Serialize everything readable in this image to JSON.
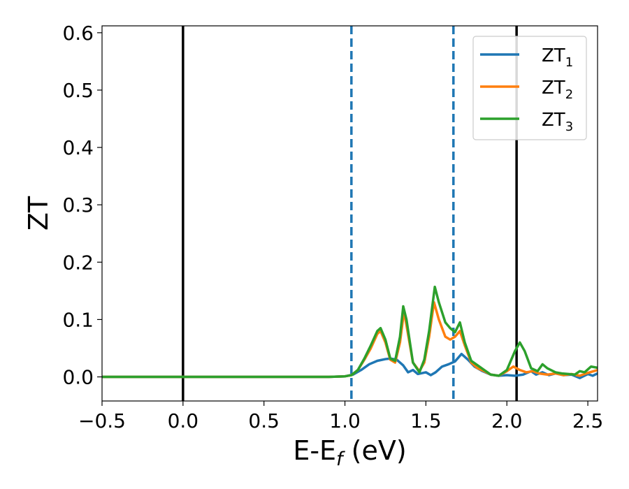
{
  "chart_data": {
    "type": "line",
    "xlabel": "E-E",
    "xlabel_sub": "f",
    "xlabel_suffix": " (eV)",
    "ylabel": "ZT",
    "xlim": [
      -0.5,
      2.56
    ],
    "ylim": [
      -0.042,
      0.612
    ],
    "xticks": [
      -0.5,
      0.0,
      0.5,
      1.0,
      1.5,
      2.0,
      2.5
    ],
    "xtick_labels": [
      "−0.5",
      "0.0",
      "0.5",
      "1.0",
      "1.5",
      "2.0",
      "2.5"
    ],
    "yticks": [
      0.0,
      0.1,
      0.2,
      0.3,
      0.4,
      0.5,
      0.6
    ],
    "ytick_labels": [
      "0.0",
      "0.1",
      "0.2",
      "0.3",
      "0.4",
      "0.5",
      "0.6"
    ],
    "grid": false,
    "legend_position": "top-right",
    "vlines": [
      {
        "x": 0.0,
        "color": "#000000",
        "style": "solid"
      },
      {
        "x": 2.06,
        "color": "#000000",
        "style": "solid"
      },
      {
        "x": 1.04,
        "color": "#1f77b4",
        "style": "dashed"
      },
      {
        "x": 1.67,
        "color": "#1f77b4",
        "style": "dashed"
      }
    ],
    "series": [
      {
        "name": "ZT",
        "sub": "1",
        "color": "#1f77b4",
        "points": [
          [
            -0.5,
            0
          ],
          [
            0.9,
            0
          ],
          [
            1.0,
            0.001
          ],
          [
            1.05,
            0.004
          ],
          [
            1.1,
            0.012
          ],
          [
            1.15,
            0.022
          ],
          [
            1.2,
            0.028
          ],
          [
            1.25,
            0.031
          ],
          [
            1.28,
            0.032
          ],
          [
            1.32,
            0.03
          ],
          [
            1.36,
            0.02
          ],
          [
            1.39,
            0.008
          ],
          [
            1.42,
            0.012
          ],
          [
            1.45,
            0.005
          ],
          [
            1.5,
            0.008
          ],
          [
            1.53,
            0.003
          ],
          [
            1.56,
            0.008
          ],
          [
            1.6,
            0.018
          ],
          [
            1.64,
            0.022
          ],
          [
            1.68,
            0.027
          ],
          [
            1.72,
            0.04
          ],
          [
            1.76,
            0.03
          ],
          [
            1.8,
            0.018
          ],
          [
            1.85,
            0.01
          ],
          [
            1.9,
            0.004
          ],
          [
            1.95,
            0.002
          ],
          [
            2.0,
            0.003
          ],
          [
            2.05,
            0.002
          ],
          [
            2.1,
            0.004
          ],
          [
            2.15,
            0.01
          ],
          [
            2.18,
            0.004
          ],
          [
            2.22,
            0.008
          ],
          [
            2.26,
            0.003
          ],
          [
            2.3,
            0.006
          ],
          [
            2.35,
            0.003
          ],
          [
            2.4,
            0.004
          ],
          [
            2.45,
            -0.002
          ],
          [
            2.5,
            0.005
          ],
          [
            2.53,
            0.002
          ],
          [
            2.56,
            0.006
          ]
        ]
      },
      {
        "name": "ZT",
        "sub": "2",
        "color": "#ff7f0e",
        "points": [
          [
            -0.5,
            0
          ],
          [
            0.9,
            0
          ],
          [
            1.0,
            0.001
          ],
          [
            1.04,
            0.003
          ],
          [
            1.08,
            0.012
          ],
          [
            1.12,
            0.03
          ],
          [
            1.16,
            0.05
          ],
          [
            1.2,
            0.075
          ],
          [
            1.22,
            0.08
          ],
          [
            1.25,
            0.06
          ],
          [
            1.28,
            0.03
          ],
          [
            1.31,
            0.025
          ],
          [
            1.34,
            0.06
          ],
          [
            1.365,
            0.115
          ],
          [
            1.38,
            0.09
          ],
          [
            1.42,
            0.025
          ],
          [
            1.46,
            0.01
          ],
          [
            1.49,
            0.025
          ],
          [
            1.52,
            0.07
          ],
          [
            1.55,
            0.13
          ],
          [
            1.58,
            0.1
          ],
          [
            1.62,
            0.07
          ],
          [
            1.65,
            0.065
          ],
          [
            1.68,
            0.07
          ],
          [
            1.71,
            0.08
          ],
          [
            1.74,
            0.055
          ],
          [
            1.78,
            0.025
          ],
          [
            1.82,
            0.015
          ],
          [
            1.86,
            0.01
          ],
          [
            1.9,
            0.004
          ],
          [
            1.95,
            0.002
          ],
          [
            2.0,
            0.01
          ],
          [
            2.04,
            0.018
          ],
          [
            2.08,
            0.012
          ],
          [
            2.12,
            0.008
          ],
          [
            2.16,
            0.01
          ],
          [
            2.2,
            0.006
          ],
          [
            2.25,
            0.004
          ],
          [
            2.3,
            0.006
          ],
          [
            2.35,
            0.003
          ],
          [
            2.4,
            0.005
          ],
          [
            2.45,
            0.002
          ],
          [
            2.5,
            0.007
          ],
          [
            2.56,
            0.012
          ]
        ]
      },
      {
        "name": "ZT",
        "sub": "3",
        "color": "#2ca02c",
        "points": [
          [
            -0.5,
            0
          ],
          [
            0.9,
            0
          ],
          [
            1.0,
            0.001
          ],
          [
            1.04,
            0.003
          ],
          [
            1.08,
            0.012
          ],
          [
            1.12,
            0.032
          ],
          [
            1.16,
            0.055
          ],
          [
            1.2,
            0.08
          ],
          [
            1.22,
            0.085
          ],
          [
            1.25,
            0.065
          ],
          [
            1.28,
            0.032
          ],
          [
            1.31,
            0.028
          ],
          [
            1.34,
            0.07
          ],
          [
            1.36,
            0.123
          ],
          [
            1.38,
            0.1
          ],
          [
            1.42,
            0.025
          ],
          [
            1.46,
            0.008
          ],
          [
            1.49,
            0.03
          ],
          [
            1.52,
            0.08
          ],
          [
            1.555,
            0.157
          ],
          [
            1.58,
            0.13
          ],
          [
            1.62,
            0.095
          ],
          [
            1.65,
            0.085
          ],
          [
            1.68,
            0.078
          ],
          [
            1.71,
            0.095
          ],
          [
            1.74,
            0.06
          ],
          [
            1.78,
            0.028
          ],
          [
            1.82,
            0.02
          ],
          [
            1.86,
            0.012
          ],
          [
            1.9,
            0.004
          ],
          [
            1.95,
            0.002
          ],
          [
            2.0,
            0.012
          ],
          [
            2.05,
            0.045
          ],
          [
            2.08,
            0.06
          ],
          [
            2.11,
            0.045
          ],
          [
            2.15,
            0.015
          ],
          [
            2.19,
            0.01
          ],
          [
            2.22,
            0.022
          ],
          [
            2.25,
            0.015
          ],
          [
            2.3,
            0.008
          ],
          [
            2.34,
            0.006
          ],
          [
            2.38,
            0.005
          ],
          [
            2.42,
            0.004
          ],
          [
            2.45,
            0.01
          ],
          [
            2.48,
            0.008
          ],
          [
            2.52,
            0.018
          ],
          [
            2.56,
            0.016
          ]
        ]
      }
    ]
  }
}
